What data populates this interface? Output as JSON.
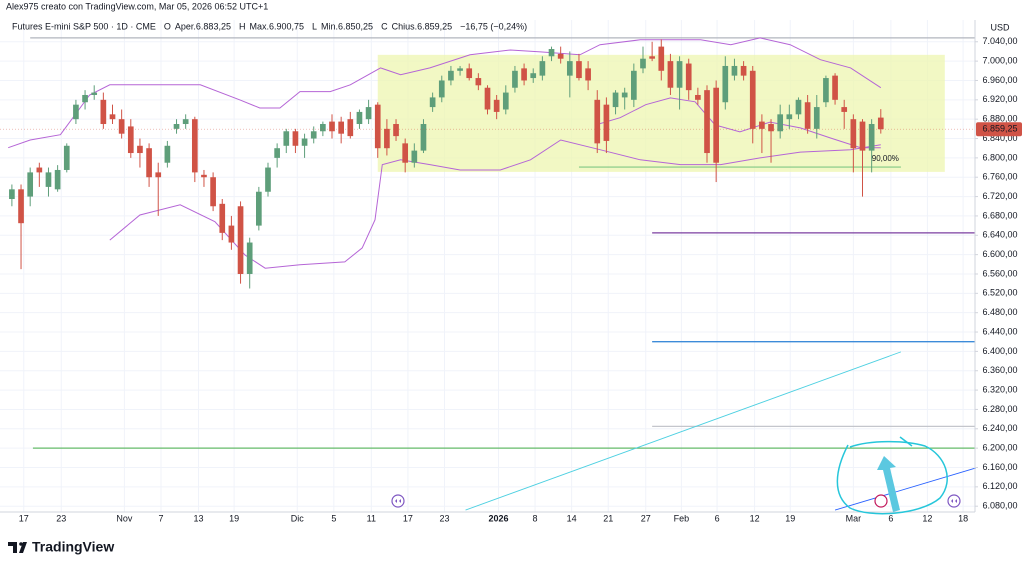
{
  "header": "Alex975 creato con TradingView.com, Mar 05, 2026 06:52 UTC+1",
  "legend": {
    "symbol": "Futures E-mini S&P 500 · 1D · CME",
    "ohlc": [
      {
        "key": "O",
        "label": "Aper.6.883,25"
      },
      {
        "key": "H",
        "label": "Max.6.900,75"
      },
      {
        "key": "L",
        "label": "Min.6.850,25"
      },
      {
        "key": "C",
        "label": "Chius.6.859,25"
      }
    ],
    "change": "−16,75 (−0,24%)"
  },
  "logo": "TradingView",
  "chart_data": {
    "type": "candlestick",
    "currency": "USD",
    "up_color": "#5e9e7a",
    "down_color": "#d05346",
    "xlim": [
      -1.3,
      105.3
    ],
    "ylim": [
      6068,
      7085
    ],
    "xticks": [
      {
        "value": 1.3,
        "label": "17"
      },
      {
        "value": 5.4,
        "label": "23"
      },
      {
        "value": 12.3,
        "label": "Nov"
      },
      {
        "value": 16.3,
        "label": "7"
      },
      {
        "value": 20.4,
        "label": "13"
      },
      {
        "value": 24.3,
        "label": "19"
      },
      {
        "value": 31.2,
        "label": "Dic"
      },
      {
        "value": 35.2,
        "label": "5"
      },
      {
        "value": 39.3,
        "label": "11"
      },
      {
        "value": 43.3,
        "label": "17"
      },
      {
        "value": 47.3,
        "label": "23"
      },
      {
        "value": 53.2,
        "label": "2026",
        "bold": true
      },
      {
        "value": 57.2,
        "label": "8"
      },
      {
        "value": 61.2,
        "label": "14"
      },
      {
        "value": 65.2,
        "label": "21"
      },
      {
        "value": 69.3,
        "label": "27"
      },
      {
        "value": 73.2,
        "label": "Feb"
      },
      {
        "value": 77.1,
        "label": "6"
      },
      {
        "value": 81.2,
        "label": "12"
      },
      {
        "value": 85.1,
        "label": "19"
      },
      {
        "value": 92.0,
        "label": "Mar"
      },
      {
        "value": 96.1,
        "label": "6"
      },
      {
        "value": 100.1,
        "label": "12"
      },
      {
        "value": 104.0,
        "label": "18"
      }
    ],
    "yticks": [
      {
        "value": 6080,
        "label": "6.080,00"
      },
      {
        "value": 6120,
        "label": "6.120,00"
      },
      {
        "value": 6160,
        "label": "6.160,00"
      },
      {
        "value": 6200,
        "label": "6.200,00"
      },
      {
        "value": 6240,
        "label": "6.240,00"
      },
      {
        "value": 6280,
        "label": "6.280,00"
      },
      {
        "value": 6320,
        "label": "6.320,00"
      },
      {
        "value": 6360,
        "label": "6.360,00"
      },
      {
        "value": 6400,
        "label": "6.400,00"
      },
      {
        "value": 6440,
        "label": "6.440,00"
      },
      {
        "value": 6480,
        "label": "6.480,00"
      },
      {
        "value": 6520,
        "label": "6.520,00"
      },
      {
        "value": 6560,
        "label": "6.560,00"
      },
      {
        "value": 6600,
        "label": "6.600,00"
      },
      {
        "value": 6640,
        "label": "6.640,00"
      },
      {
        "value": 6680,
        "label": "6.680,00"
      },
      {
        "value": 6720,
        "label": "6.720,00"
      },
      {
        "value": 6760,
        "label": "6.760,00"
      },
      {
        "value": 6800,
        "label": "6.800,00"
      },
      {
        "value": 6840,
        "label": "6.840,00"
      },
      {
        "value": 6880,
        "label": "6.880,00"
      },
      {
        "value": 6920,
        "label": "6.920,00"
      },
      {
        "value": 6960,
        "label": "6.960,00"
      },
      {
        "value": 7000,
        "label": "7.000,00"
      },
      {
        "value": 7040,
        "label": "7.040,00"
      }
    ],
    "grid": true,
    "last_price_label": "6.859,25",
    "open": [
      6715,
      6735,
      6720,
      6780,
      6740,
      6735,
      6775,
      6880,
      6915,
      6930,
      6920,
      6890,
      6880,
      6865,
      6825,
      6820,
      6770,
      6790,
      6860,
      6870,
      6880,
      6765,
      6760,
      6705,
      6660,
      6700,
      6560,
      6660,
      6730,
      6800,
      6825,
      6855,
      6825,
      6840,
      6855,
      6875,
      6875,
      6880,
      6870,
      6880,
      6910,
      6860,
      6870,
      6830,
      6790,
      6815,
      6905,
      6925,
      6960,
      6980,
      6985,
      6965,
      6945,
      6920,
      6900,
      6945,
      6985,
      6965,
      6970,
      7010,
      7015,
      6970,
      7000,
      6985,
      6920,
      6910,
      6905,
      6925,
      6920,
      6985,
      7010,
      7030,
      7000,
      6945,
      6995,
      6930,
      6940,
      6945,
      6915,
      6970,
      6990,
      6980,
      6875,
      6870,
      6855,
      6880,
      6890,
      6915,
      6860,
      6915,
      6970,
      6905,
      6880,
      6875,
      6815,
      6883.25
    ],
    "high": [
      6745,
      6745,
      6780,
      6790,
      6780,
      6785,
      6830,
      6920,
      6940,
      6950,
      6935,
      6910,
      6900,
      6880,
      6840,
      6830,
      6790,
      6835,
      6880,
      6890,
      6885,
      6775,
      6770,
      6715,
      6680,
      6710,
      6635,
      6740,
      6790,
      6830,
      6860,
      6860,
      6850,
      6865,
      6875,
      6890,
      6885,
      6895,
      6900,
      6920,
      6915,
      6880,
      6880,
      6840,
      6830,
      6880,
      6935,
      6970,
      6990,
      6990,
      6995,
      6975,
      6950,
      6930,
      6950,
      6990,
      6995,
      6985,
      7010,
      7030,
      7030,
      7020,
      7015,
      7000,
      6940,
      6925,
      6940,
      6945,
      6995,
      7030,
      7040,
      7045,
      7015,
      7010,
      7005,
      6945,
      6950,
      6960,
      7010,
      7005,
      7000,
      6990,
      6890,
      6880,
      6910,
      6910,
      6925,
      6930,
      6930,
      6970,
      6975,
      6920,
      6890,
      6880,
      6880,
      6900.75
    ],
    "low": [
      6700,
      6570,
      6700,
      6740,
      6720,
      6730,
      6770,
      6870,
      6900,
      6920,
      6860,
      6870,
      6840,
      6800,
      6780,
      6740,
      6680,
      6780,
      6850,
      6860,
      6750,
      6740,
      6690,
      6630,
      6610,
      6540,
      6530,
      6650,
      6720,
      6780,
      6810,
      6810,
      6800,
      6830,
      6845,
      6840,
      6830,
      6840,
      6860,
      6870,
      6800,
      6805,
      6835,
      6770,
      6780,
      6810,
      6895,
      6915,
      6950,
      6970,
      6960,
      6940,
      6890,
      6880,
      6890,
      6935,
      6950,
      6955,
      6960,
      7000,
      6995,
      6925,
      6960,
      6940,
      6810,
      6810,
      6890,
      6900,
      6905,
      6975,
      7000,
      6960,
      6930,
      6900,
      6920,
      6910,
      6790,
      6750,
      6900,
      6960,
      6960,
      6830,
      6810,
      6790,
      6840,
      6860,
      6880,
      6850,
      6840,
      6905,
      6910,
      6860,
      6770,
      6720,
      6770,
      6850.25
    ],
    "close": [
      6735,
      6665,
      6770,
      6770,
      6770,
      6775,
      6825,
      6910,
      6930,
      6935,
      6870,
      6880,
      6850,
      6810,
      6810,
      6760,
      6760,
      6825,
      6870,
      6880,
      6770,
      6760,
      6700,
      6645,
      6625,
      6560,
      6625,
      6730,
      6780,
      6820,
      6855,
      6825,
      6840,
      6855,
      6870,
      6855,
      6850,
      6845,
      6895,
      6905,
      6820,
      6820,
      6845,
      6790,
      6815,
      6870,
      6925,
      6960,
      6980,
      6985,
      6965,
      6950,
      6900,
      6895,
      6935,
      6980,
      6960,
      6975,
      7000,
      7025,
      7005,
      7000,
      6965,
      6960,
      6830,
      6835,
      6935,
      6935,
      6980,
      7005,
      7005,
      6980,
      6945,
      7000,
      6940,
      6920,
      6810,
      6790,
      6990,
      6990,
      6970,
      6860,
      6860,
      6855,
      6890,
      6890,
      6920,
      6860,
      6905,
      6965,
      6920,
      6895,
      6820,
      6815,
      6870,
      6859.25
    ],
    "bands": [
      {
        "color": "#b565d6",
        "x": [
          -0.4,
          2.0,
          5.3,
          8.5,
          10.7,
          15.1,
          20.6,
          24.9,
          27.1,
          29.3,
          31.5,
          34.8,
          37.0,
          40.3,
          42.5,
          45.7,
          50.1,
          54.5,
          57.8,
          62.1,
          64.3,
          68.7,
          75.3,
          78.6,
          81.8,
          85.1,
          88.4,
          91.7,
          95.0
        ],
        "values": [
          6821,
          6837,
          6848,
          6930,
          6951,
          6951,
          6951,
          6920,
          6903,
          6903,
          6937,
          6937,
          6951,
          6986,
          6972,
          6986,
          7013,
          7023,
          7019,
          7013,
          7034,
          7044,
          7044,
          7034,
          7048,
          7034,
          7003,
          6986,
          6945
        ]
      },
      {
        "color": "#b565d6",
        "x": [
          63.8,
          66.5,
          69.3,
          72.0,
          74.7,
          76.9,
          79.6,
          82.9,
          86.2,
          89.5,
          92.8,
          95.0
        ],
        "values": [
          6868,
          6883,
          6910,
          6924,
          6916,
          6868,
          6854,
          6874,
          6862,
          6841,
          6821,
          6821
        ]
      },
      {
        "color": "#b565d6",
        "x": [
          10.7,
          14.0,
          18.4,
          22.2,
          25.5,
          27.7,
          31.5,
          36.4,
          38.3,
          39.7,
          40.5,
          42.5,
          45.7,
          49.0,
          53.4,
          56.7,
          60.0,
          64.3,
          68.7,
          73.1,
          77.5,
          81.8,
          86.2,
          91.7,
          95.0
        ],
        "values": [
          6630,
          6682,
          6703,
          6668,
          6599,
          6572,
          6579,
          6585,
          6614,
          6672,
          6786,
          6796,
          6786,
          6775,
          6775,
          6796,
          6837,
          6817,
          6796,
          6786,
          6786,
          6800,
          6812,
          6817,
          6827
        ]
      }
    ],
    "zone": {
      "x": [
        40,
        102
      ],
      "y": [
        6771,
        7013
      ],
      "color": "#eef5b0"
    },
    "hlines": [
      {
        "value": 7048,
        "from": 2.0,
        "color": "#b2b5be"
      },
      {
        "value": 6200,
        "from": 2.3,
        "color": "#66bb6a"
      },
      {
        "value": 6645,
        "from": 70,
        "color": "#7b3fa0"
      },
      {
        "value": 6420,
        "from": 70,
        "color": "#3d8bd9"
      },
      {
        "value": 6245,
        "from": 70,
        "color": "#c4c6cc"
      }
    ],
    "fib": {
      "value": 6781,
      "x": [
        62,
        97.2
      ],
      "label": "90,00%",
      "color": "#81c784"
    },
    "trendlines": [
      {
        "x": [
          49.6,
          97.2
        ],
        "values": [
          6072,
          6399
        ],
        "color": "#4dd0e1"
      },
      {
        "x": [
          90.0,
          105.4
        ],
        "values": [
          6072,
          6159
        ],
        "color": "#2962ff"
      }
    ]
  }
}
